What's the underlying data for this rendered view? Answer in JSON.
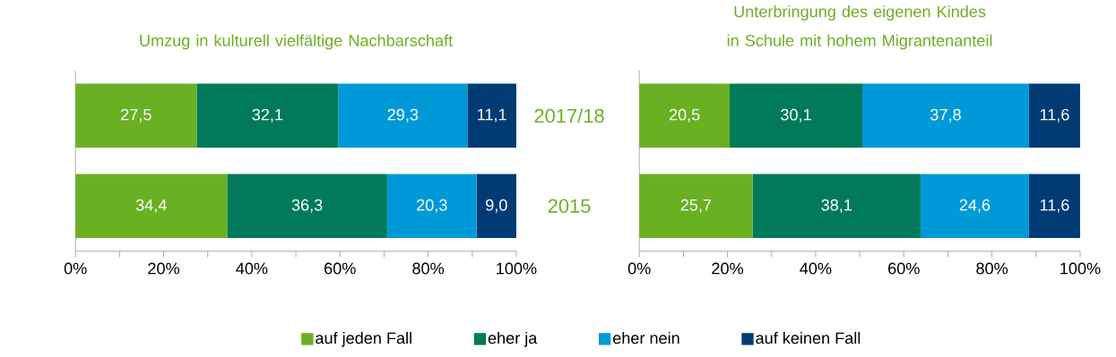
{
  "chart_data": [
    {
      "type": "bar",
      "orientation": "horizontal",
      "stacked": true,
      "title": "Umzug in kulturell vielfältige Nachbarschaft",
      "categories": [
        "2017/18",
        "2015"
      ],
      "tick_labels": "x",
      "legend": "bottom",
      "xlim": [
        0,
        100
      ],
      "xticks": [
        {
          "value": 0,
          "label": "0%"
        },
        {
          "value": 10,
          "label": null
        },
        {
          "value": 20,
          "label": "20%"
        },
        {
          "value": 30,
          "label": null
        },
        {
          "value": 40,
          "label": "40%"
        },
        {
          "value": 50,
          "label": null
        },
        {
          "value": 60,
          "label": "60%"
        },
        {
          "value": 70,
          "label": null
        },
        {
          "value": 80,
          "label": "80%"
        },
        {
          "value": 90,
          "label": null
        },
        {
          "value": 100,
          "label": "100%"
        }
      ],
      "series": [
        {
          "name": "auf jeden Fall",
          "color": "#6ab023",
          "values": [
            27.5,
            34.4
          ],
          "value_labels": [
            "27,5",
            "34,4"
          ]
        },
        {
          "name": "eher ja",
          "color": "#007a5a",
          "values": [
            32.1,
            36.3
          ],
          "value_labels": [
            "32,1",
            "36,3"
          ]
        },
        {
          "name": "eher nein",
          "color": "#0099d8",
          "values": [
            29.3,
            20.3
          ],
          "value_labels": [
            "29,3",
            "20,3"
          ]
        },
        {
          "name": "auf keinen Fall",
          "color": "#003b73",
          "values": [
            11.1,
            9.0
          ],
          "value_labels": [
            "11,1",
            "9,0"
          ]
        }
      ]
    },
    {
      "type": "bar",
      "orientation": "horizontal",
      "stacked": true,
      "title": "Unterbringung des eigenen Kindes in Schule mit hohem Migrantenanteil",
      "categories": [
        "2017/18",
        "2015"
      ],
      "xlim": [
        0,
        100
      ],
      "xticks": [
        {
          "value": 0,
          "label": "0%"
        },
        {
          "value": 10,
          "label": null
        },
        {
          "value": 20,
          "label": "20%"
        },
        {
          "value": 30,
          "label": null
        },
        {
          "value": 40,
          "label": "40%"
        },
        {
          "value": 50,
          "label": null
        },
        {
          "value": 60,
          "label": "60%"
        },
        {
          "value": 70,
          "label": null
        },
        {
          "value": 80,
          "label": "80%"
        },
        {
          "value": 90,
          "label": null
        },
        {
          "value": 100,
          "label": "100%"
        }
      ],
      "series": [
        {
          "color": "#6ab023",
          "values": [
            20.5,
            25.7
          ],
          "value_labels": [
            "20,5",
            "25,7"
          ]
        },
        {
          "color": "#007a5a",
          "values": [
            30.1,
            38.1
          ],
          "value_labels": [
            "30,1",
            "38,1"
          ]
        },
        {
          "color": "#0099d8",
          "values": [
            37.8,
            24.6
          ],
          "value_labels": [
            "37,8",
            "24,6"
          ]
        },
        {
          "color": "#003b73",
          "values": [
            11.6,
            11.6
          ],
          "value_labels": [
            "11,6",
            "11,6"
          ]
        }
      ]
    }
  ]
}
